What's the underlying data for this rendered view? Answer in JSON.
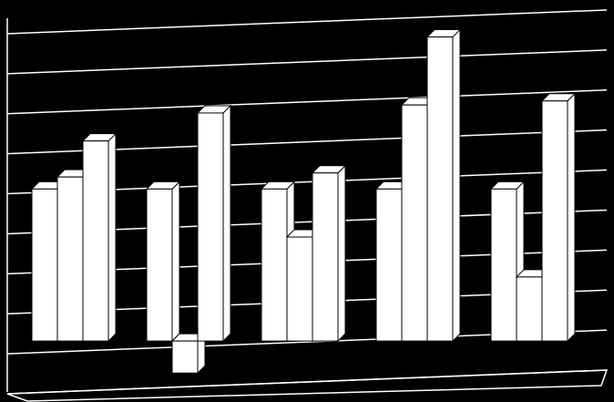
{
  "chart_data": {
    "type": "bar3d",
    "categories": [
      null,
      null,
      null,
      null,
      null
    ],
    "series": [
      {
        "color": "#ffffff",
        "values": [
          3.8,
          3.8,
          3.8,
          3.8,
          3.8
        ]
      },
      {
        "color": "#ffffff",
        "values": [
          4.1,
          -0.8,
          2.6,
          5.9,
          1.6
        ]
      },
      {
        "color": "#ffffff",
        "values": [
          5.0,
          5.7,
          4.2,
          7.6,
          6.0
        ]
      }
    ],
    "ylim": [
      -1,
      8
    ],
    "yticks": [
      -1,
      0,
      1,
      2,
      3,
      4,
      5,
      6,
      7,
      8
    ],
    "grid": true
  }
}
